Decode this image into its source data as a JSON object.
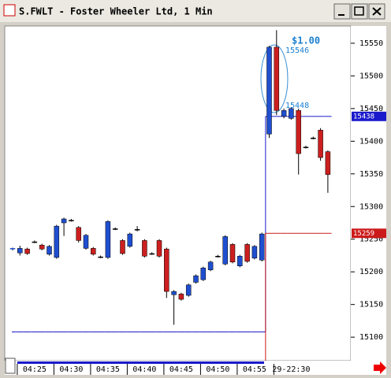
{
  "window": {
    "title": "S.FWLT - Foster Wheeler Ltd, 1 Min"
  },
  "chart_data": {
    "type": "candlestick",
    "categories": [
      null,
      null,
      null,
      "04:25",
      null,
      null,
      null,
      null,
      "04:30",
      null,
      null,
      null,
      null,
      "04:35",
      null,
      null,
      null,
      null,
      "04:40",
      null,
      null,
      null,
      null,
      "04:45",
      null,
      null,
      null,
      null,
      "04:50",
      null,
      null,
      null,
      null,
      "04:55",
      null,
      null,
      null,
      null,
      "29-22:30",
      null,
      null,
      null,
      null,
      null
    ],
    "open": [
      15235,
      15229,
      15235,
      15246,
      15241,
      15227,
      15222,
      15275,
      15279,
      15268,
      15236,
      15236,
      15223,
      15222,
      15266,
      15248,
      15239,
      15265,
      15248,
      15228,
      15248,
      15235,
      15165,
      15166,
      15164,
      15184,
      15188,
      15203,
      15224,
      15212,
      15242,
      15209,
      15242,
      15221,
      15218,
      15411,
      15544,
      15438,
      15435,
      15447,
      15391,
      15405,
      15417,
      15384
    ],
    "high": [
      15237,
      15240,
      15237,
      15248,
      15243,
      15241,
      15272,
      15283,
      15281,
      15270,
      15258,
      15238,
      15225,
      15279,
      15268,
      15250,
      15260,
      15270,
      15250,
      15230,
      15250,
      15237,
      15172,
      15168,
      15182,
      15196,
      15208,
      15217,
      15226,
      15256,
      15244,
      15226,
      15244,
      15241,
      15260,
      15546,
      15570,
      15450,
      15452,
      15450,
      15393,
      15407,
      15420,
      15386
    ],
    "low": [
      15233,
      15225,
      15226,
      15244,
      15233,
      15225,
      15220,
      15255,
      15277,
      15245,
      15234,
      15225,
      15221,
      15220,
      15264,
      15226,
      15237,
      15262,
      15222,
      15226,
      15222,
      15160,
      15119,
      15156,
      15162,
      15182,
      15186,
      15201,
      15222,
      15210,
      15213,
      15207,
      15214,
      15219,
      15216,
      15405,
      15440,
      15435,
      15433,
      15349,
      15389,
      15403,
      15370,
      15321
    ],
    "close": [
      15236,
      15236,
      15228,
      15246,
      15235,
      15239,
      15270,
      15281,
      15279,
      15248,
      15256,
      15227,
      15223,
      15277,
      15266,
      15228,
      15258,
      15265,
      15224,
      15228,
      15224,
      15170,
      15170,
      15158,
      15180,
      15194,
      15206,
      15215,
      15224,
      15254,
      15215,
      15224,
      15216,
      15239,
      15258,
      15544,
      15447,
      15447,
      15450,
      15381,
      15391,
      15405,
      15375,
      15349
    ],
    "up_color": "#1f4fd0",
    "down_color": "#cc1f1f",
    "series": [
      {
        "color": "#1a1acc",
        "values": [
          15108,
          15108,
          15108,
          15108,
          15108,
          15108,
          15108,
          15108,
          15108,
          15108,
          15108,
          15108,
          15108,
          15108,
          15108,
          15108,
          15108,
          15108,
          15108,
          15108,
          15108,
          15108,
          15108,
          15108,
          15108,
          15108,
          15108,
          15108,
          15108,
          15108,
          15108,
          15108,
          15108,
          15108,
          15108,
          15438,
          15438,
          15438,
          15438,
          15438,
          15438,
          15438,
          15438,
          15438
        ]
      },
      {
        "color": "#cc1a1a",
        "values": [
          null,
          null,
          null,
          null,
          null,
          null,
          null,
          null,
          null,
          null,
          null,
          null,
          null,
          null,
          null,
          null,
          null,
          null,
          null,
          null,
          null,
          null,
          null,
          null,
          null,
          null,
          null,
          null,
          null,
          null,
          null,
          null,
          null,
          null,
          null,
          15259,
          15259,
          15259,
          15259,
          15259,
          15259,
          15259,
          15259,
          15259
        ]
      }
    ],
    "annotations": [
      "$1.00",
      "15546",
      "15448"
    ],
    "ylim": [
      15064,
      15574
    ],
    "yticks": [
      15100,
      15150,
      15200,
      15250,
      15300,
      15350,
      15400,
      15450,
      15500,
      15550
    ]
  }
}
